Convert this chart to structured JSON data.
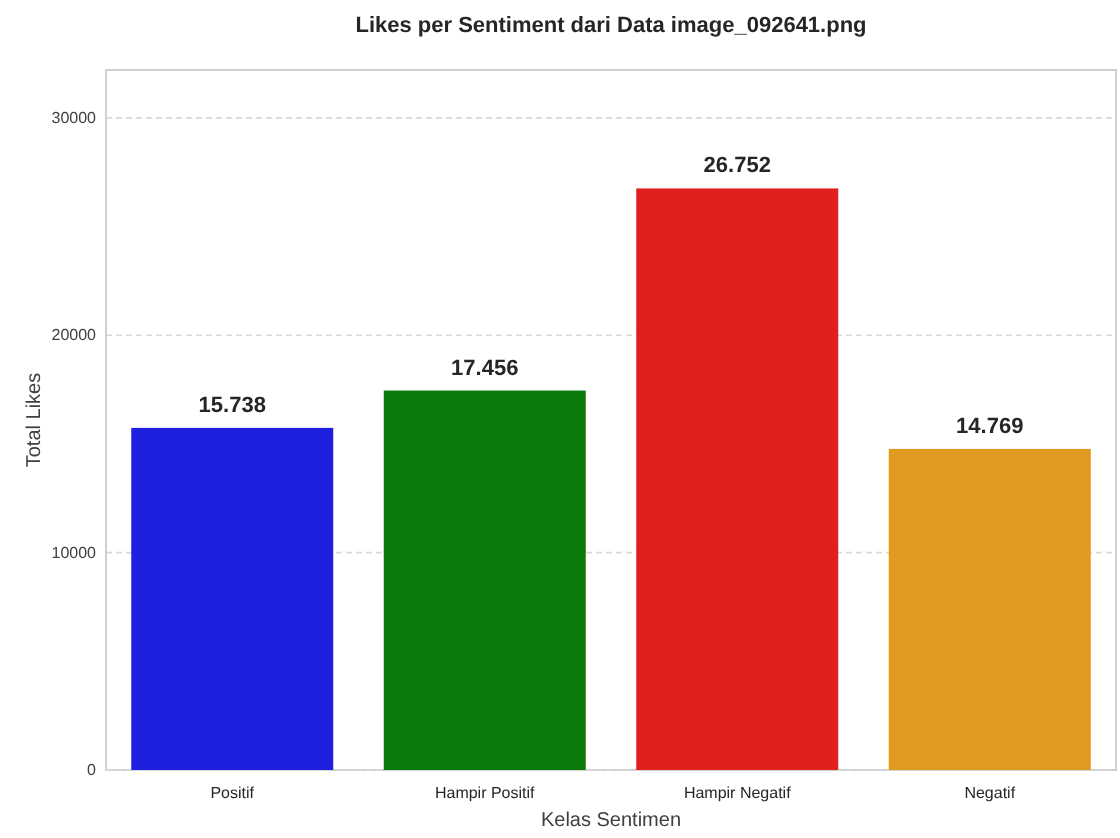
{
  "chart_data": {
    "type": "bar",
    "title": "Likes per Sentiment dari Data image_092641.png",
    "xlabel": "Kelas Sentimen",
    "ylabel": "Total Likes",
    "categories": [
      "Positif",
      "Hampir Positif",
      "Hampir Negatif",
      "Negatif"
    ],
    "values": [
      15738,
      17456,
      26752,
      14769
    ],
    "colors": [
      "#1f1fe0",
      "#0a7a0a",
      "#e01f1f",
      "#e09a1f"
    ],
    "value_labels": [
      "15.738",
      "17.456",
      "26.752",
      "14.769"
    ],
    "ylim": [
      0,
      32200
    ],
    "yticks": [
      0,
      10000,
      20000,
      30000
    ],
    "grid": "y"
  }
}
